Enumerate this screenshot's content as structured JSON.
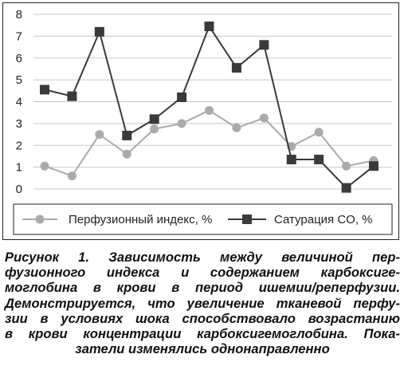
{
  "chart_data": {
    "type": "line",
    "title": "",
    "xlabel": "",
    "ylabel": "",
    "ylim": [
      0,
      8
    ],
    "yticks": [
      "0",
      "1",
      "2",
      "3",
      "4",
      "5",
      "6",
      "7",
      "8"
    ],
    "grid": true,
    "legend_position": "bottom",
    "x": [
      1,
      2,
      3,
      4,
      5,
      6,
      7,
      8,
      9,
      10,
      11,
      12,
      13
    ],
    "series": [
      {
        "name": "Перфузионный индекс, %",
        "marker": "circle",
        "color": "#aaaaaa",
        "values": [
          1.05,
          0.6,
          2.5,
          1.6,
          2.75,
          3.0,
          3.6,
          2.8,
          3.25,
          1.95,
          2.6,
          1.05,
          1.3
        ]
      },
      {
        "name": "Сатурация CO, %",
        "marker": "square",
        "color": "#3a3a3a",
        "values": [
          4.55,
          4.25,
          7.2,
          2.45,
          3.2,
          4.2,
          7.45,
          5.55,
          6.6,
          1.35,
          1.35,
          0.05,
          1.05
        ]
      }
    ]
  },
  "caption": {
    "lines": [
      "Рисунок 1. Зависимость между величиной пер-",
      "фузионного индекса и содержанием карбоксиге-",
      "моглобина в крови в период ишемии/реперфузии.",
      "Демонстрируется, что увеличение тканевой перфу-",
      "зии в условиях шока способствовало возрастанию",
      "в крови концентрации карбоксигемоглобина. Пока-",
      "затели изменялись однонаправленно"
    ]
  }
}
